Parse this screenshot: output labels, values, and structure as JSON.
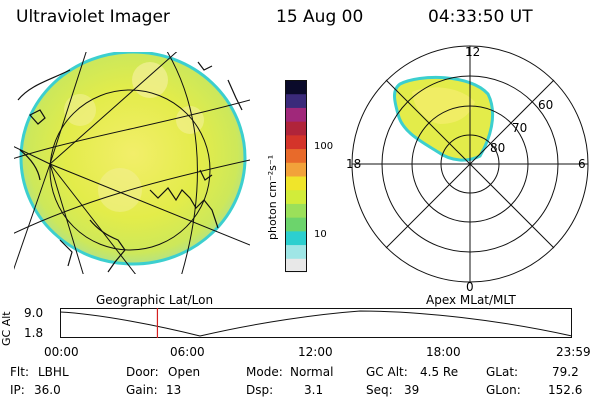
{
  "header": {
    "title": "Ultraviolet Imager",
    "date": "15 Aug 00",
    "time": "04:33:50 UT"
  },
  "colorbar": {
    "unit_label": "photon cm⁻²s⁻¹",
    "ticks": [
      "100",
      "10"
    ],
    "scale": "log",
    "colors": [
      "#e8e8e8",
      "#9fe6e6",
      "#2ccfcf",
      "#6cd46c",
      "#9be05a",
      "#d2ec3a",
      "#f0e52a",
      "#f2a23a",
      "#e86a2a",
      "#d4342a",
      "#b0243a",
      "#a0287a",
      "#3a2a7a",
      "#0a0a2a"
    ]
  },
  "polar_plot": {
    "mlt_labels": {
      "top": "12",
      "left": "18",
      "right": "6",
      "bottom": "0"
    },
    "mlat_labels": [
      "60",
      "70",
      "80"
    ]
  },
  "timeline": {
    "left_label": "Geographic Lat/Lon",
    "right_label": "Apex MLat/MLT",
    "axis_title": "GC Alt",
    "y_ticks": [
      "9.0",
      "1.8"
    ],
    "x_ticks": [
      "00:00",
      "06:00",
      "12:00",
      "18:00",
      "23:59"
    ],
    "current_time_marker": "04:33:50",
    "marker_color": "#d42020"
  },
  "info": {
    "flt": {
      "label": "Flt:",
      "value": "LBHL"
    },
    "ip": {
      "label": "IP:",
      "value": "36.0"
    },
    "door": {
      "label": "Door:",
      "value": "Open"
    },
    "gain": {
      "label": "Gain:",
      "value": "13"
    },
    "mode": {
      "label": "Mode:",
      "value": "Normal"
    },
    "dsp": {
      "label": "Dsp:",
      "value": "3.1"
    },
    "gc_alt": {
      "label": "GC Alt:",
      "value": "4.5 Re"
    },
    "seq": {
      "label": "Seq:",
      "value": "39"
    },
    "glat": {
      "label": "GLat:",
      "value": "79.2"
    },
    "glon": {
      "label": "GLon:",
      "value": "152.6"
    }
  }
}
